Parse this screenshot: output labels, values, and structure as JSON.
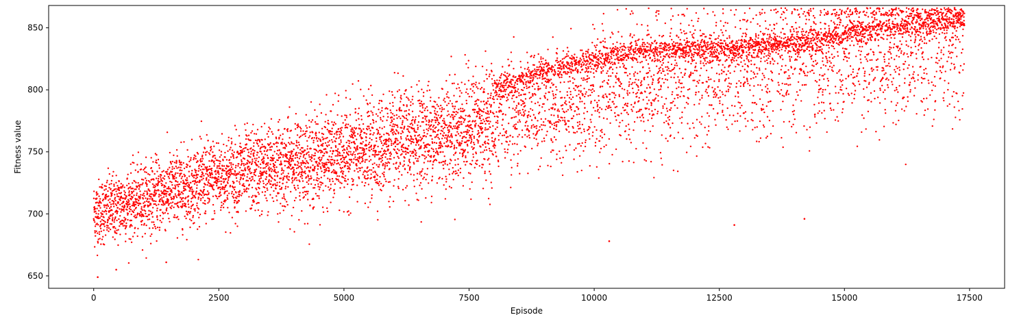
{
  "chart_data": {
    "type": "scatter",
    "title": "",
    "xlabel": "Episode",
    "ylabel": "Fitness value",
    "xlim": [
      -900,
      18200
    ],
    "ylim": [
      640,
      868
    ],
    "xticks": [
      0,
      2500,
      5000,
      7500,
      10000,
      12500,
      15000,
      17500
    ],
    "yticks": [
      650,
      700,
      750,
      800,
      850
    ],
    "grid": false,
    "legend": "none",
    "n_episodes": 17400,
    "series": [
      {
        "color": "#ff0000",
        "marker": "dot",
        "trend": [
          {
            "x": 0,
            "y": 700
          },
          {
            "x": 2500,
            "y": 730
          },
          {
            "x": 5000,
            "y": 748
          },
          {
            "x": 7500,
            "y": 770
          },
          {
            "x": 10000,
            "y": 795
          },
          {
            "x": 12500,
            "y": 815
          },
          {
            "x": 15000,
            "y": 830
          },
          {
            "x": 17400,
            "y": 845
          }
        ],
        "upper_band": [
          {
            "x": 8000,
            "y": 800
          },
          {
            "x": 9000,
            "y": 815
          },
          {
            "x": 10000,
            "y": 825
          },
          {
            "x": 11000,
            "y": 832
          },
          {
            "x": 12500,
            "y": 833
          },
          {
            "x": 14000,
            "y": 838
          },
          {
            "x": 15500,
            "y": 848
          },
          {
            "x": 17400,
            "y": 857
          }
        ],
        "highlights": [
          {
            "x": 80,
            "y": 649
          },
          {
            "x": 450,
            "y": 655
          },
          {
            "x": 1450,
            "y": 661
          },
          {
            "x": 10300,
            "y": 678
          },
          {
            "x": 12800,
            "y": 691
          },
          {
            "x": 14200,
            "y": 696
          },
          {
            "x": 17200,
            "y": 866
          }
        ]
      }
    ]
  }
}
